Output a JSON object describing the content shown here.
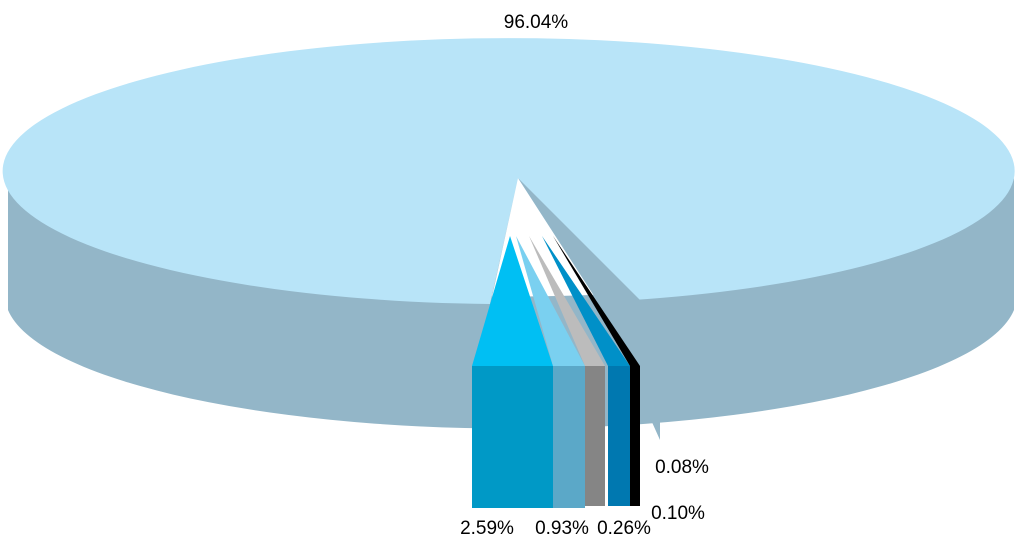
{
  "chart_data": {
    "type": "pie",
    "style": "3d",
    "slices": [
      {
        "label": "96.04%",
        "value": 96.04,
        "color": "#b8e4f8",
        "side_color": "#93b6c8"
      },
      {
        "label": "2.59%",
        "value": 2.59,
        "color": "#00bff3",
        "side_color": "#0099c6"
      },
      {
        "label": "0.93%",
        "value": 0.93,
        "color": "#7ad0f0",
        "side_color": "#5ba8c8"
      },
      {
        "label": "0.26%",
        "value": 0.26,
        "color": "#bcbcbc",
        "side_color": "#858585"
      },
      {
        "label": "0.10%",
        "value": 0.1,
        "color": "#0090c8",
        "side_color": "#0078b0"
      },
      {
        "label": "0.08%",
        "value": 0.08,
        "color": "#000000",
        "side_color": "#000000"
      }
    ],
    "legend": "none",
    "exploded": [
      "2.59%",
      "0.93%",
      "0.26%",
      "0.10%",
      "0.08%"
    ]
  }
}
